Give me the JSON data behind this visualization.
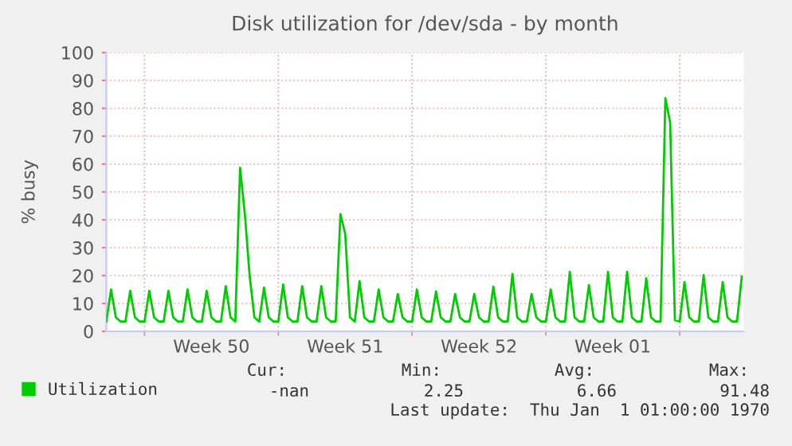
{
  "chart_data": {
    "type": "line",
    "title": "Disk utilization for /dev/sda - by month",
    "ylabel": "% busy",
    "ylim": [
      0,
      100
    ],
    "yticks": [
      0,
      10,
      20,
      30,
      40,
      50,
      60,
      70,
      80,
      90,
      100
    ],
    "categories": [
      null,
      null,
      null,
      null,
      null,
      null,
      null,
      null,
      null,
      null,
      null,
      null,
      null,
      null,
      null,
      null,
      null,
      null,
      null,
      null,
      null,
      null,
      "Week 50",
      null,
      null,
      null,
      null,
      null,
      null,
      null,
      null,
      null,
      null,
      null,
      null,
      null,
      null,
      null,
      null,
      null,
      null,
      null,
      null,
      null,
      null,
      null,
      null,
      null,
      null,
      null,
      "Week 51",
      null,
      null,
      null,
      null,
      null,
      null,
      null,
      null,
      null,
      null,
      null,
      null,
      null,
      null,
      null,
      null,
      null,
      null,
      null,
      null,
      null,
      null,
      null,
      null,
      null,
      null,
      null,
      "Week 52",
      null,
      null,
      null,
      null,
      null,
      null,
      null,
      null,
      null,
      null,
      null,
      null,
      null,
      null,
      null,
      null,
      null,
      null,
      null,
      null,
      null,
      null,
      null,
      null,
      null,
      null,
      null,
      "Week 01",
      null,
      null,
      null,
      null,
      null,
      null,
      null,
      null,
      null,
      null,
      null,
      null,
      null,
      null,
      null,
      null,
      null,
      null,
      null,
      null,
      null,
      null,
      null,
      null,
      null,
      null,
      null
    ],
    "grid": true,
    "legend": "bottom left",
    "series": [
      {
        "name": "Utilization",
        "color": "#00cc00",
        "values": [
          3.5,
          15,
          5,
          3.5,
          3.5,
          14.5,
          5,
          3.5,
          3.5,
          14.5,
          5,
          3.5,
          3.5,
          14.5,
          5,
          3.5,
          3.5,
          15,
          5,
          3.5,
          3.5,
          14.5,
          5,
          3.5,
          3.5,
          16.2,
          5,
          3.5,
          58.7,
          42,
          20,
          5,
          3.5,
          15.7,
          5,
          3.5,
          3.5,
          16.8,
          5,
          3.5,
          3.5,
          16.2,
          5,
          3.5,
          3.5,
          16.2,
          5,
          3.5,
          3.5,
          42,
          35,
          5,
          3.5,
          18,
          5,
          3.5,
          3.5,
          15,
          5,
          3.5,
          3.5,
          13.4,
          5,
          3.5,
          3.5,
          15,
          5,
          3.5,
          3.5,
          14.3,
          5,
          3.5,
          3.5,
          13.4,
          5,
          3.5,
          3.5,
          13.4,
          5,
          3.5,
          3.5,
          16,
          5,
          3.5,
          3.5,
          20.6,
          5,
          3.5,
          3.5,
          13.4,
          5,
          3.5,
          3.5,
          15,
          5,
          3.5,
          3.5,
          21.3,
          5,
          3.5,
          3.5,
          16.6,
          5,
          3.5,
          3.5,
          21.3,
          5,
          3.5,
          3.5,
          21.3,
          5,
          3.5,
          3.5,
          19,
          5,
          3.5,
          3.5,
          83.6,
          75,
          4,
          3.5,
          17.7,
          5,
          3.5,
          3.5,
          20.2,
          5,
          3.5,
          3.5,
          17.7,
          5,
          3.5,
          3.5,
          19.6
        ]
      }
    ],
    "annotations": [
      "Cur:",
      "Min:",
      "Avg:",
      "Max:",
      "-nan",
      "2.25",
      "6.66",
      "91.48",
      "Last update:  Thu Jan  1 01:00:00 1970"
    ]
  }
}
